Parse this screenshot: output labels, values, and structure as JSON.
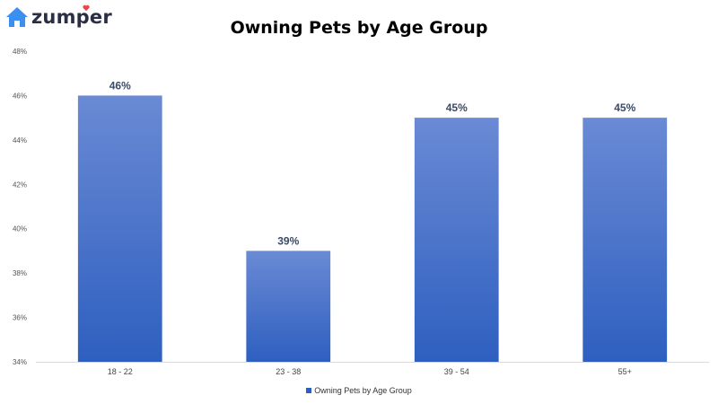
{
  "brand": {
    "name": "zumper",
    "house_color": "#3a8ff0",
    "heart_color": "#e8434f"
  },
  "chart_data": {
    "type": "bar",
    "title": "Owning Pets by Age Group",
    "xlabel": "",
    "ylabel": "",
    "categories": [
      "18 - 22",
      "23 - 38",
      "39 - 54",
      "55+"
    ],
    "series": [
      {
        "name": "Owning Pets by Age Group",
        "values": [
          46,
          39,
          45,
          45
        ]
      }
    ],
    "data_labels": [
      "46%",
      "39%",
      "45%",
      "45%"
    ],
    "ylim": [
      34,
      48
    ],
    "yticks": [
      34,
      36,
      38,
      40,
      42,
      44,
      46,
      48
    ],
    "ytick_labels": [
      "34%",
      "36%",
      "38%",
      "40%",
      "42%",
      "44%",
      "46%",
      "48%"
    ],
    "grid": false,
    "legend_position": "bottom",
    "bar_color_top": "#6a8ad4",
    "bar_color_bottom": "#2e5fc0"
  }
}
